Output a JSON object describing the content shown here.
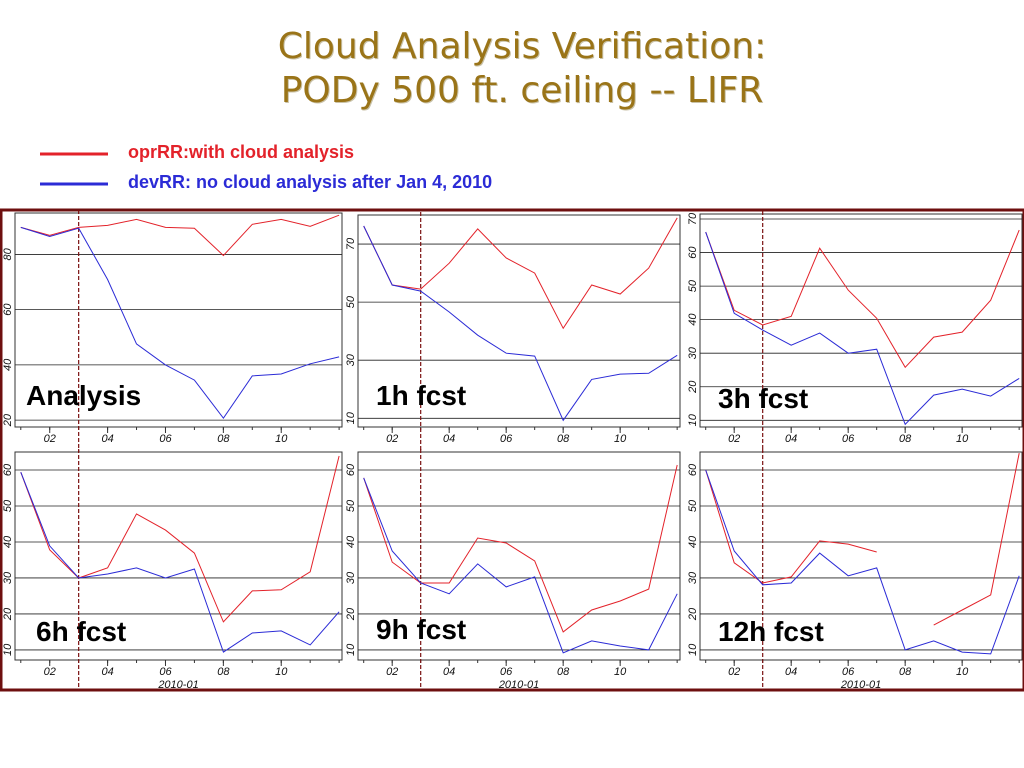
{
  "slide_title": [
    "Cloud Analysis Verification:",
    "PODy 500 ft. ceiling -- LIFR"
  ],
  "legend": [
    {
      "name": "oprRR:with cloud analysis",
      "color": "#e3222a"
    },
    {
      "name": "devRR: no cloud analysis after Jan 4, 2010",
      "color": "#2b2bd6"
    }
  ],
  "chart_data": [
    {
      "type": "line",
      "title": "Analysis",
      "x": [
        1,
        2,
        3,
        4,
        5,
        6,
        7,
        8,
        9,
        10,
        11,
        12
      ],
      "xlim": [
        0.8,
        12.1
      ],
      "xticks": [
        {
          "value": 2,
          "label": "02"
        },
        {
          "value": 4,
          "label": "04"
        },
        {
          "value": 6,
          "label": "06"
        },
        {
          "value": 8,
          "label": "08"
        },
        {
          "value": 10,
          "label": "10"
        }
      ],
      "ylim": [
        17.5,
        95
      ],
      "yticks": [
        20,
        40,
        60,
        80
      ],
      "grid": true,
      "vline": 3,
      "series": [
        {
          "color": "#e3222a",
          "values": [
            89.8,
            86.9,
            89.8,
            90.5,
            92.7,
            89.8,
            89.5,
            79.6,
            90.9,
            92.7,
            90.2,
            94.2
          ]
        },
        {
          "color": "#2b2bd6",
          "values": [
            89.8,
            86.5,
            89.5,
            70.9,
            47.6,
            40,
            34.5,
            20.7,
            36,
            36.7,
            40.4,
            42.9
          ]
        }
      ]
    },
    {
      "type": "line",
      "title": "1h fcst",
      "x": [
        1,
        2,
        3,
        4,
        5,
        6,
        7,
        8,
        9,
        10,
        11,
        12
      ],
      "xlim": [
        0.8,
        12.1
      ],
      "xticks": [
        {
          "value": 2,
          "label": "02"
        },
        {
          "value": 4,
          "label": "04"
        },
        {
          "value": 6,
          "label": "06"
        },
        {
          "value": 8,
          "label": "08"
        },
        {
          "value": 10,
          "label": "10"
        }
      ],
      "ylim": [
        7,
        80
      ],
      "yticks": [
        10,
        30,
        50,
        70
      ],
      "grid": true,
      "vline": 3,
      "series": [
        {
          "color": "#e3222a",
          "values": [
            76.2,
            55.9,
            54.5,
            63.4,
            75.2,
            65.2,
            60,
            41,
            55.9,
            52.8,
            61.7,
            79
          ]
        },
        {
          "color": "#2b2bd6",
          "values": [
            76.2,
            55.9,
            53.8,
            46.6,
            38.6,
            32.4,
            31.4,
            9.3,
            23.4,
            25.2,
            25.5,
            31.7
          ]
        }
      ]
    },
    {
      "type": "line",
      "title": "3h fcst",
      "x": [
        1,
        2,
        3,
        4,
        5,
        6,
        7,
        8,
        9,
        10,
        11,
        12
      ],
      "xlim": [
        0.8,
        12.1
      ],
      "xticks": [
        {
          "value": 2,
          "label": "02"
        },
        {
          "value": 4,
          "label": "04"
        },
        {
          "value": 6,
          "label": "06"
        },
        {
          "value": 8,
          "label": "08"
        },
        {
          "value": 10,
          "label": "10"
        }
      ],
      "ylim": [
        8,
        71.5
      ],
      "yticks": [
        10,
        20,
        30,
        40,
        50,
        60,
        70
      ],
      "grid": true,
      "vline": 3,
      "series": [
        {
          "color": "#e3222a",
          "values": [
            66.1,
            42.8,
            38.4,
            41,
            61.3,
            48.8,
            40.4,
            25.8,
            34.8,
            36.3,
            45.8,
            66.7
          ]
        },
        {
          "color": "#2b2bd6",
          "values": [
            66.1,
            41.9,
            36.9,
            32.4,
            36,
            30,
            31.2,
            8.8,
            17.5,
            19.3,
            17.2,
            22.5
          ]
        }
      ]
    },
    {
      "type": "line",
      "title": "6h fcst",
      "x": [
        1,
        2,
        3,
        4,
        5,
        6,
        7,
        8,
        9,
        10,
        11,
        12
      ],
      "xlim": [
        0.8,
        12.1
      ],
      "xlabel": "2010-01",
      "xticks": [
        {
          "value": 2,
          "label": "02"
        },
        {
          "value": 4,
          "label": "04"
        },
        {
          "value": 6,
          "label": "06"
        },
        {
          "value": 8,
          "label": "08"
        },
        {
          "value": 10,
          "label": "10"
        }
      ],
      "ylim": [
        7.2,
        65
      ],
      "yticks": [
        10,
        20,
        30,
        40,
        50,
        60
      ],
      "grid": true,
      "vline": 3,
      "series": [
        {
          "color": "#e3222a",
          "values": [
            59.4,
            37.8,
            30,
            32.8,
            47.8,
            43.3,
            36.9,
            17.8,
            26.4,
            26.7,
            31.7,
            63.9
          ]
        },
        {
          "color": "#2b2bd6",
          "values": [
            59.4,
            38.9,
            30,
            31.1,
            32.8,
            30,
            32.5,
            9.4,
            14.7,
            15.3,
            11.4,
            20.6
          ]
        }
      ]
    },
    {
      "type": "line",
      "title": "9h fcst",
      "x": [
        1,
        2,
        3,
        4,
        5,
        6,
        7,
        8,
        9,
        10,
        11,
        12
      ],
      "xlim": [
        0.8,
        12.1
      ],
      "xlabel": "2010-01",
      "xticks": [
        {
          "value": 2,
          "label": "02"
        },
        {
          "value": 4,
          "label": "04"
        },
        {
          "value": 6,
          "label": "06"
        },
        {
          "value": 8,
          "label": "08"
        },
        {
          "value": 10,
          "label": "10"
        }
      ],
      "ylim": [
        7.2,
        65
      ],
      "yticks": [
        10,
        20,
        30,
        40,
        50,
        60
      ],
      "grid": true,
      "vline": 3,
      "series": [
        {
          "color": "#e3222a",
          "values": [
            57.8,
            34.4,
            28.6,
            28.6,
            41.1,
            39.7,
            34.7,
            15,
            21.1,
            23.6,
            26.9,
            61.4
          ]
        },
        {
          "color": "#2b2bd6",
          "values": [
            57.8,
            37.5,
            28.6,
            25.6,
            33.9,
            27.5,
            30.3,
            9.2,
            12.5,
            11.1,
            10,
            25.6
          ]
        }
      ]
    },
    {
      "type": "line",
      "title": "12h fcst",
      "x": [
        1,
        2,
        3,
        4,
        5,
        6,
        7,
        8,
        9,
        10,
        11,
        12
      ],
      "xlim": [
        0.8,
        12.1
      ],
      "xlabel": "2010-01",
      "xticks": [
        {
          "value": 2,
          "label": "02"
        },
        {
          "value": 4,
          "label": "04"
        },
        {
          "value": 6,
          "label": "06"
        },
        {
          "value": 8,
          "label": "08"
        },
        {
          "value": 10,
          "label": "10"
        }
      ],
      "ylim": [
        7.2,
        65
      ],
      "yticks": [
        10,
        20,
        30,
        40,
        50,
        60
      ],
      "grid": true,
      "vline": 3,
      "series": [
        {
          "color": "#e3222a",
          "values": [
            60,
            34.2,
            28.6,
            30.3,
            40.3,
            39.4,
            37.2,
            null,
            16.9,
            21.1,
            25.3,
            64.7
          ]
        },
        {
          "color": "#2b2bd6",
          "values": [
            60,
            37.5,
            28.1,
            28.6,
            36.9,
            30.6,
            32.8,
            10,
            12.5,
            9.4,
            8.9,
            30.6
          ]
        }
      ]
    }
  ]
}
